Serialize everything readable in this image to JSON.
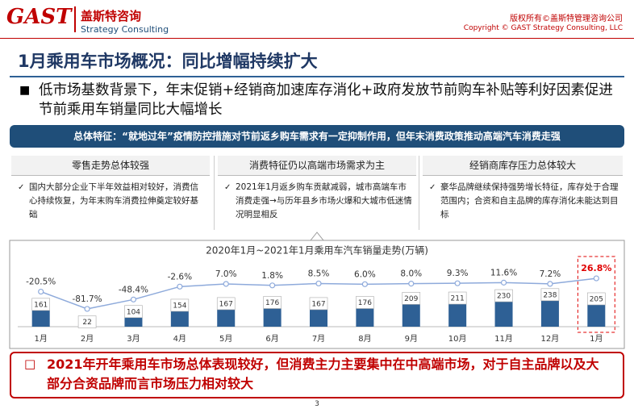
{
  "header": {
    "logo": "GAST",
    "company_cn": "盖斯特咨询",
    "company_en": "Strategy Consulting",
    "copyright_cn": "版权所有©盖斯特管理咨询公司",
    "copyright_en": "Copyright © GAST Strategy Consulting, LLC"
  },
  "title": "1月乘用车市场概况：同比增幅持续扩大",
  "bullet": "低市场基数背景下，年末促销+经销商加速库存消化+政府发放节前购车补贴等利好因素促进节前乘用车销量同比大幅增长",
  "summary": "总体特征：“就地过年”疫情防控措施对节前返乡购车需求有一定抑制作用，但年末消费政策推动高端汽车消费走强",
  "panels": [
    {
      "heading": "零售走势总体较强",
      "text": "国内大部分企业下半年效益相对较好，消费信心持续恢复，为年末购车消费拉伸奠定较好基础"
    },
    {
      "heading": "消费特征仍以高端市场需求为主",
      "text": "2021年1月返乡购车贡献减弱，城市高端车市消费走强→与历年县乡市场火爆和大城市低迷情况明显相反"
    },
    {
      "heading": "经销商库存压力总体较大",
      "text": "豪华品牌继续保持强势增长特征，库存处于合理范围内；合资和自主品牌的库存消化未能达到目标"
    }
  ],
  "chart_data": {
    "type": "bar",
    "title": "2020年1月~2021年1月乘用车汽车销量走势(万辆)",
    "categories": [
      "1月",
      "2月",
      "3月",
      "4月",
      "5月",
      "6月",
      "7月",
      "8月",
      "9月",
      "10月",
      "11月",
      "12月",
      "1月"
    ],
    "ylim": [
      0,
      480
    ],
    "y2lim": [
      -145,
      70
    ],
    "series": [
      {
        "type": "bar",
        "color": "#2e6095",
        "values": [
          161,
          22,
          104,
          154,
          167,
          176,
          167,
          176,
          209,
          211,
          230,
          238,
          205
        ]
      },
      {
        "type": "line",
        "axis": "y2",
        "color": "#8eaadb",
        "values": [
          -20.5,
          -81.7,
          -48.4,
          -2.6,
          7.0,
          1.8,
          8.5,
          6.0,
          8.0,
          9.3,
          11.6,
          7.2,
          26.8
        ],
        "value_labels": [
          "-20.5%",
          "-81.7%",
          "-48.4%",
          "-2.6%",
          "7.0%",
          "1.8%",
          "8.5%",
          "6.0%",
          "8.0%",
          "9.3%",
          "11.6%",
          "7.2%",
          "26.8%"
        ]
      }
    ]
  },
  "conclusion": "2021年开年乘用车市场总体表现较好，但消费主力主要集中在中高端市场，对于自主品牌以及大部分合资品牌而言市场压力相对较大",
  "page_number": "3"
}
